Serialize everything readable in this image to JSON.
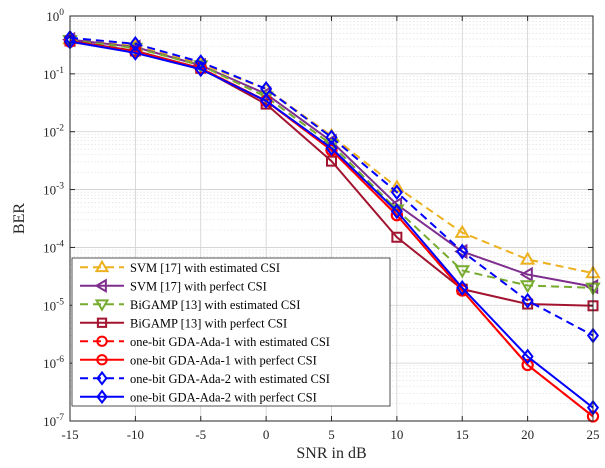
{
  "chart_data": {
    "type": "line",
    "xlabel": "SNR in dB",
    "ylabel": "BER",
    "x": [
      -15,
      -10,
      -5,
      0,
      5,
      10,
      15,
      20,
      25
    ],
    "xlim": [
      -15,
      25
    ],
    "ylim": [
      1e-07,
      1
    ],
    "yscale": "log",
    "grid": true,
    "legend_position": "bottom-left",
    "xticks": [
      "-15",
      "-10",
      "-5",
      "0",
      "5",
      "10",
      "15",
      "20",
      "25"
    ],
    "yticks": [
      {
        "base": "10",
        "exp": "-7"
      },
      {
        "base": "10",
        "exp": "-6"
      },
      {
        "base": "10",
        "exp": "-5"
      },
      {
        "base": "10",
        "exp": "-4"
      },
      {
        "base": "10",
        "exp": "-3"
      },
      {
        "base": "10",
        "exp": "-2"
      },
      {
        "base": "10",
        "exp": "-1"
      },
      {
        "base": "10",
        "exp": "0"
      }
    ],
    "series": [
      {
        "name": "SVM [17] with estimated CSI",
        "color": "#EDB120",
        "dash": true,
        "marker": "triangle-up",
        "values": [
          0.4,
          0.3,
          0.15,
          0.055,
          0.0085,
          0.0011,
          0.00018,
          6.2e-05,
          3.6e-05
        ]
      },
      {
        "name": "SVM [17] with perfect CSI",
        "color": "#7E2F8E",
        "dash": false,
        "marker": "triangle-left",
        "values": [
          0.39,
          0.29,
          0.14,
          0.045,
          0.0068,
          0.00055,
          8.5e-05,
          3.4e-05,
          2.1e-05
        ]
      },
      {
        "name": "BiGAMP [13] with estimated CSI",
        "color": "#77AC30",
        "dash": true,
        "marker": "triangle-down",
        "values": [
          0.38,
          0.28,
          0.14,
          0.04,
          0.006,
          0.00045,
          4e-05,
          2.2e-05,
          2e-05
        ]
      },
      {
        "name": "BiGAMP [13] with perfect CSI",
        "color": "#A2142F",
        "dash": false,
        "marker": "square",
        "values": [
          0.37,
          0.25,
          0.125,
          0.03,
          0.0031,
          0.00015,
          1.9e-05,
          1.05e-05,
          9.8e-06
        ]
      },
      {
        "name": "one-bit GDA-Ada-1 with estimated CSI",
        "color": "#FF0000",
        "dash": true,
        "marker": "circle",
        "values": [
          0.37,
          0.24,
          0.125,
          0.034,
          0.0048,
          0.00036,
          1.8e-05,
          9.3e-07,
          1.2e-07
        ]
      },
      {
        "name": "one-bit GDA-Ada-1 with perfect CSI",
        "color": "#FF0000",
        "dash": false,
        "marker": "circle",
        "values": [
          0.36,
          0.24,
          0.125,
          0.034,
          0.0048,
          0.00036,
          1.8e-05,
          9.3e-07,
          1.2e-07
        ]
      },
      {
        "name": "one-bit GDA-Ada-2 with estimated CSI",
        "color": "#0000FF",
        "dash": true,
        "marker": "diamond",
        "values": [
          0.42,
          0.33,
          0.16,
          0.055,
          0.008,
          0.0009,
          8.5e-05,
          1.2e-05,
          3e-06
        ]
      },
      {
        "name": "one-bit GDA-Ada-2 with perfect CSI",
        "color": "#0000FF",
        "dash": false,
        "marker": "diamond",
        "values": [
          0.36,
          0.23,
          0.12,
          0.034,
          0.0052,
          0.00042,
          2e-05,
          1.3e-06,
          1.7e-07
        ]
      }
    ]
  }
}
